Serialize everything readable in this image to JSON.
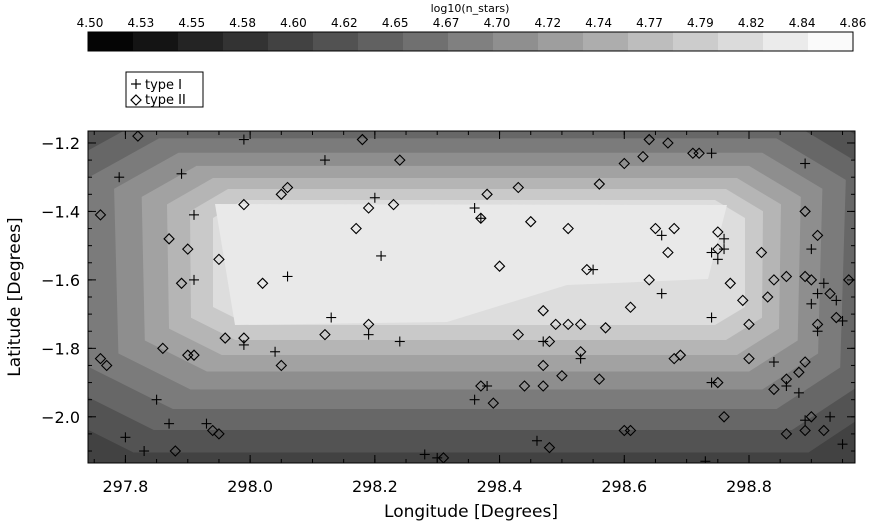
{
  "chart_data": {
    "type": "contour",
    "title": "",
    "xlabel": "Longitude [Degrees]",
    "ylabel": "Latitude [Degrees]",
    "xlim": [
      297.74,
      298.97
    ],
    "ylim": [
      -2.135,
      -1.165
    ],
    "x_ticks": [
      "297.8",
      "298.0",
      "298.2",
      "298.4",
      "298.6",
      "298.8"
    ],
    "y_ticks": [
      "-1.2",
      "-1.4",
      "-1.6",
      "-1.8",
      "-2.0"
    ],
    "colorbar": {
      "label": "log10(n_stars)",
      "range": [
        4.5,
        4.86
      ],
      "levels": 17,
      "tick_labels": [
        "4.50",
        "4.53",
        "4.55",
        "4.58",
        "4.60",
        "4.62",
        "4.65",
        "4.67",
        "4.70",
        "4.72",
        "4.74",
        "4.77",
        "4.79",
        "4.82",
        "4.84",
        "4.86"
      ]
    },
    "legend": {
      "position": "above plot, left",
      "entries": [
        {
          "label": "type I",
          "marker": "plus"
        },
        {
          "label": "type II",
          "marker": "diamond"
        }
      ]
    },
    "series": [
      {
        "name": "type I",
        "marker": "plus",
        "points": [
          [
            297.79,
            -1.3
          ],
          [
            297.89,
            -1.29
          ],
          [
            297.99,
            -1.19
          ],
          [
            298.12,
            -1.25
          ],
          [
            297.91,
            -1.41
          ],
          [
            298.36,
            -1.39
          ],
          [
            298.37,
            -1.42
          ],
          [
            298.2,
            -1.36
          ],
          [
            298.21,
            -1.53
          ],
          [
            298.06,
            -1.59
          ],
          [
            297.91,
            -1.6
          ],
          [
            298.55,
            -1.57
          ],
          [
            298.66,
            -1.47
          ],
          [
            298.74,
            -1.52
          ],
          [
            298.76,
            -1.48
          ],
          [
            298.75,
            -1.54
          ],
          [
            298.76,
            -1.51
          ],
          [
            298.66,
            -1.64
          ],
          [
            298.74,
            -1.71
          ],
          [
            298.74,
            -1.9
          ],
          [
            298.13,
            -1.71
          ],
          [
            298.19,
            -1.76
          ],
          [
            298.24,
            -1.78
          ],
          [
            298.04,
            -1.81
          ],
          [
            297.99,
            -1.79
          ],
          [
            297.85,
            -1.95
          ],
          [
            297.87,
            -2.02
          ],
          [
            297.93,
            -2.02
          ],
          [
            297.8,
            -2.06
          ],
          [
            297.83,
            -2.1
          ],
          [
            298.36,
            -1.95
          ],
          [
            298.38,
            -1.91
          ],
          [
            298.47,
            -1.78
          ],
          [
            298.53,
            -1.83
          ],
          [
            298.46,
            -2.07
          ],
          [
            298.28,
            -2.11
          ],
          [
            298.3,
            -2.12
          ],
          [
            298.73,
            -2.13
          ],
          [
            298.74,
            -1.23
          ],
          [
            298.89,
            -1.26
          ],
          [
            298.9,
            -1.51
          ],
          [
            298.91,
            -1.64
          ],
          [
            298.92,
            -1.61
          ],
          [
            298.9,
            -1.67
          ],
          [
            298.84,
            -1.84
          ],
          [
            298.86,
            -1.91
          ],
          [
            298.88,
            -1.93
          ],
          [
            298.93,
            -2.0
          ],
          [
            298.89,
            -2.01
          ],
          [
            298.95,
            -2.08
          ],
          [
            298.91,
            -1.75
          ],
          [
            298.95,
            -1.72
          ],
          [
            298.94,
            -1.66
          ]
        ]
      },
      {
        "name": "type II",
        "marker": "diamond",
        "points": [
          [
            297.82,
            -1.18
          ],
          [
            297.76,
            -1.41
          ],
          [
            297.87,
            -1.48
          ],
          [
            297.9,
            -1.51
          ],
          [
            297.89,
            -1.61
          ],
          [
            297.95,
            -1.54
          ],
          [
            297.99,
            -1.38
          ],
          [
            298.06,
            -1.33
          ],
          [
            298.05,
            -1.35
          ],
          [
            298.02,
            -1.61
          ],
          [
            298.17,
            -1.45
          ],
          [
            298.19,
            -1.39
          ],
          [
            298.23,
            -1.38
          ],
          [
            298.18,
            -1.19
          ],
          [
            298.24,
            -1.25
          ],
          [
            298.38,
            -1.35
          ],
          [
            298.43,
            -1.33
          ],
          [
            298.45,
            -1.43
          ],
          [
            298.4,
            -1.56
          ],
          [
            298.51,
            -1.45
          ],
          [
            298.54,
            -1.57
          ],
          [
            298.56,
            -1.32
          ],
          [
            298.6,
            -1.26
          ],
          [
            298.63,
            -1.24
          ],
          [
            298.65,
            -1.45
          ],
          [
            298.68,
            -1.45
          ],
          [
            298.67,
            -1.52
          ],
          [
            298.64,
            -1.6
          ],
          [
            298.67,
            -1.2
          ],
          [
            298.64,
            -1.19
          ],
          [
            298.71,
            -1.23
          ],
          [
            298.72,
            -1.23
          ],
          [
            298.75,
            -1.46
          ],
          [
            298.77,
            -1.61
          ],
          [
            298.75,
            -1.51
          ],
          [
            298.79,
            -1.66
          ],
          [
            298.8,
            -1.83
          ],
          [
            298.82,
            -1.52
          ],
          [
            298.84,
            -1.6
          ],
          [
            298.86,
            -1.59
          ],
          [
            298.89,
            -1.59
          ],
          [
            298.9,
            -1.6
          ],
          [
            298.89,
            -1.4
          ],
          [
            298.91,
            -1.47
          ],
          [
            298.93,
            -1.64
          ],
          [
            298.94,
            -1.71
          ],
          [
            298.96,
            -1.6
          ],
          [
            298.91,
            -1.73
          ],
          [
            298.89,
            -1.84
          ],
          [
            298.88,
            -1.87
          ],
          [
            298.86,
            -1.89
          ],
          [
            298.84,
            -1.92
          ],
          [
            298.86,
            -2.05
          ],
          [
            298.89,
            -2.04
          ],
          [
            298.92,
            -2.04
          ],
          [
            298.9,
            -2.0
          ],
          [
            298.83,
            -1.65
          ],
          [
            298.8,
            -1.73
          ],
          [
            298.75,
            -1.9
          ],
          [
            298.76,
            -2.0
          ],
          [
            298.69,
            -1.82
          ],
          [
            298.68,
            -1.83
          ],
          [
            298.61,
            -1.68
          ],
          [
            298.57,
            -1.74
          ],
          [
            298.53,
            -1.73
          ],
          [
            298.51,
            -1.73
          ],
          [
            298.49,
            -1.73
          ],
          [
            298.48,
            -1.78
          ],
          [
            298.47,
            -1.85
          ],
          [
            298.44,
            -1.91
          ],
          [
            298.43,
            -1.76
          ],
          [
            298.47,
            -1.91
          ],
          [
            298.5,
            -1.88
          ],
          [
            298.48,
            -2.09
          ],
          [
            298.37,
            -1.91
          ],
          [
            298.39,
            -1.96
          ],
          [
            298.6,
            -2.04
          ],
          [
            298.61,
            -2.04
          ],
          [
            298.47,
            -1.69
          ],
          [
            298.37,
            -1.42
          ],
          [
            298.53,
            -1.81
          ],
          [
            298.56,
            -1.89
          ],
          [
            298.12,
            -1.76
          ],
          [
            298.19,
            -1.73
          ],
          [
            298.05,
            -1.85
          ],
          [
            297.96,
            -1.77
          ],
          [
            297.99,
            -1.77
          ],
          [
            297.91,
            -1.82
          ],
          [
            297.9,
            -1.82
          ],
          [
            297.95,
            -2.05
          ],
          [
            297.94,
            -2.04
          ],
          [
            297.86,
            -1.8
          ],
          [
            297.77,
            -1.85
          ],
          [
            297.76,
            -1.83
          ],
          [
            297.88,
            -2.1
          ],
          [
            298.31,
            -2.12
          ]
        ]
      }
    ]
  }
}
